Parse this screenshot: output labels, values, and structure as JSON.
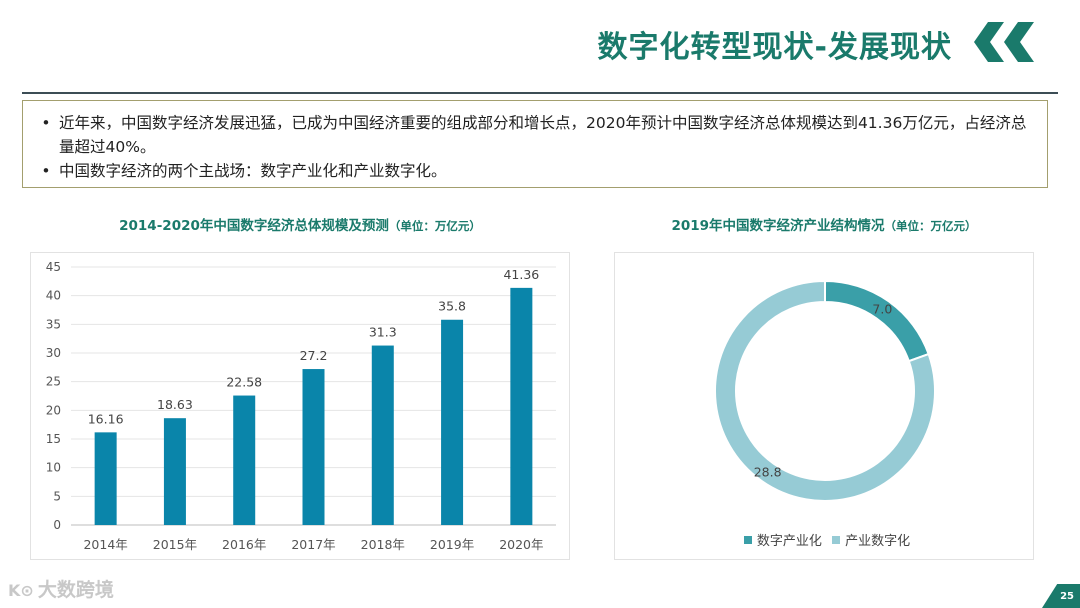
{
  "header": {
    "title": "数字化转型现状-发展现状",
    "accent_color": "#1a7a6b"
  },
  "info": {
    "bullets": [
      "近年来，中国数字经济发展迅猛，已成为中国经济重要的组成部分和增长点，2020年预计中国数字经济总体规模达到41.36万亿元，占经济总量超过40%。",
      "中国数字经济的两个主战场：数字产业化和产业数字化。"
    ],
    "bullet_symbol": "•"
  },
  "chart_data": [
    {
      "type": "bar",
      "title": "2014-2020年中国数字经济总体规模及预测",
      "unit_note": "（单位：万亿元）",
      "categories": [
        "2014年",
        "2015年",
        "2016年",
        "2017年",
        "2018年",
        "2019年",
        "2020年"
      ],
      "values": [
        16.16,
        18.63,
        22.58,
        27.2,
        31.3,
        35.8,
        41.36
      ],
      "value_labels": [
        "16.16",
        "18.63",
        "22.58",
        "27.2",
        "31.3",
        "35.8",
        "41.36"
      ],
      "yticks": [
        "0",
        "5",
        "10",
        "15",
        "20",
        "25",
        "30",
        "35",
        "40",
        "45"
      ],
      "ylim": [
        0,
        45
      ],
      "grid": true,
      "color": "#0a85aa"
    },
    {
      "type": "pie",
      "title": "2019年中国数字经济产业结构情况",
      "unit_note": "（单位：万亿元）",
      "labels": [
        "数字产业化",
        "产业数字化"
      ],
      "values": [
        7.0,
        28.8
      ],
      "value_labels": [
        "7.0",
        "28.8"
      ],
      "colors": [
        "#3a9fa8",
        "#96cbd5"
      ],
      "donut": true,
      "legend_position": "bottom"
    }
  ],
  "footer": {
    "logo_text": "大数跨境",
    "logo_mark": "K⊙",
    "page_number": "25"
  }
}
